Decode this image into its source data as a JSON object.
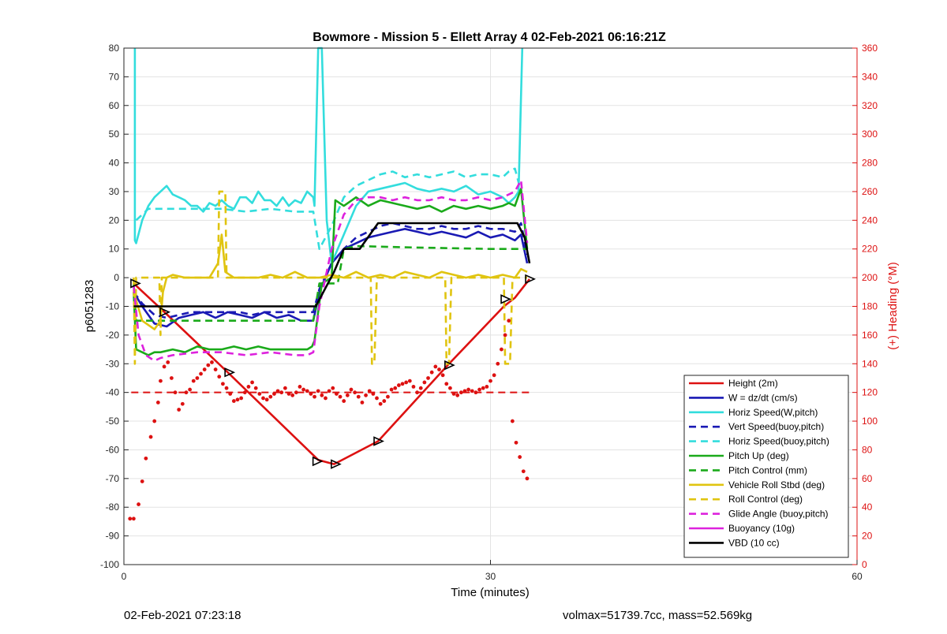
{
  "footer": {
    "timestamp": "02-Feb-2021 07:23:18",
    "stats": "volmax=51739.7cc, mass=52.569kg"
  },
  "chart_data": {
    "type": "line",
    "title": "Bowmore - Mission 5 - Ellett Array 4 02-Feb-2021 06:16:21Z",
    "xlabel": "Time (minutes)",
    "ylabel": "p6051283",
    "y2label": "(+) Heading (°M)",
    "xlim": [
      0,
      60
    ],
    "ylim": [
      -100,
      80
    ],
    "y2lim": [
      0,
      360
    ],
    "xticks": [
      0,
      30,
      60
    ],
    "yticks": [
      -100,
      -90,
      -80,
      -70,
      -60,
      -50,
      -40,
      -30,
      -20,
      -10,
      0,
      10,
      20,
      30,
      40,
      50,
      60,
      70,
      80
    ],
    "y2ticks": [
      0,
      20,
      40,
      60,
      80,
      100,
      120,
      140,
      160,
      180,
      200,
      220,
      240,
      260,
      280,
      300,
      320,
      340,
      360
    ],
    "grid": true,
    "legend_position": "bottom-right",
    "colors": {
      "red": "#dd1111",
      "blue": "#1a1ab4",
      "cyan": "#33dddd",
      "green": "#1aaa1a",
      "yellow": "#e0c410",
      "magenta": "#dd22dd",
      "black": "#000000",
      "right_axis": "#dd1111"
    },
    "series": [
      {
        "name": "Height (2m)",
        "color": "#dd1111",
        "dash": false,
        "x": [
          0.8,
          3.2,
          8.5,
          15.9,
          17.2,
          20.8,
          26.5,
          31.1,
          32.0,
          33.2
        ],
        "y": [
          -2,
          -11.5,
          -33,
          -63.5,
          -65,
          -57,
          -30.5,
          -10,
          -7,
          -0.5
        ]
      },
      {
        "name": "W = dz/dt (cm/s)",
        "color": "#1a1ab4",
        "dash": false,
        "x": [
          0.8,
          1.5,
          2.5,
          3.5,
          4.5,
          5.5,
          6.5,
          7.5,
          8.5,
          9.5,
          10.5,
          11.5,
          12.5,
          13.5,
          14.5,
          15.5,
          16.0,
          17.0,
          18.0,
          19.0,
          20.0,
          21.0,
          22.0,
          23.0,
          24.0,
          25.0,
          26.0,
          27.0,
          28.0,
          29.0,
          30.0,
          31.0,
          32.0,
          32.5,
          33.0
        ],
        "y": [
          -5,
          -10,
          -16,
          -17,
          -14,
          -13,
          -12,
          -14,
          -12,
          -13,
          -14,
          -12,
          -14,
          -13,
          -15,
          -15,
          -5,
          5,
          10,
          12,
          14,
          15,
          16,
          17,
          16,
          15,
          16,
          15,
          14,
          16,
          14,
          15,
          13,
          15,
          5
        ]
      },
      {
        "name": "Horiz Speed(W,pitch)",
        "color": "#33dddd",
        "dash": false,
        "x": [
          0.9,
          0.9,
          1.0,
          1.5,
          2.0,
          2.5,
          3.0,
          3.5,
          4.0,
          4.5,
          5.0,
          5.5,
          6.0,
          6.5,
          7.0,
          7.5,
          8.0,
          8.5,
          9.0,
          9.5,
          10.0,
          10.5,
          11.0,
          11.5,
          12.0,
          12.5,
          13.0,
          13.5,
          14.0,
          14.5,
          15.0,
          15.5,
          15.6,
          15.9,
          16.2,
          16.6,
          17.0,
          18.0,
          19.0,
          20.0,
          21.0,
          22.0,
          23.0,
          24.0,
          25.0,
          26.0,
          27.0,
          28.0,
          29.0,
          30.0,
          31.0,
          31.5,
          32.0,
          32.3,
          32.6
        ],
        "y": [
          80,
          13,
          12,
          20,
          25,
          28,
          30,
          32,
          29,
          28,
          27,
          25,
          25,
          23,
          26,
          25,
          27,
          25,
          24,
          28,
          28,
          26,
          30,
          27,
          27,
          25,
          28,
          25,
          27,
          26,
          30,
          28,
          25,
          80,
          80,
          20,
          5,
          15,
          25,
          30,
          31,
          32,
          33,
          31,
          30,
          31,
          30,
          32,
          29,
          30,
          28,
          26,
          28,
          30,
          80
        ]
      },
      {
        "name": "Vert Speed(buoy,pitch)",
        "color": "#1a1ab4",
        "dash": true,
        "x": [
          0.8,
          1.5,
          2.5,
          3.5,
          4.5,
          5.5,
          6.5,
          7.5,
          8.5,
          9.5,
          10.5,
          11.5,
          12.5,
          13.5,
          14.5,
          15.5,
          16.0,
          17.0,
          18.0,
          19.0,
          20.0,
          21.0,
          22.0,
          23.0,
          24.0,
          25.0,
          26.0,
          27.0,
          28.0,
          29.0,
          30.0,
          31.0,
          32.0,
          32.5,
          33.0
        ],
        "y": [
          -5,
          -9,
          -13,
          -14,
          -13,
          -12,
          -12,
          -12,
          -12,
          -12,
          -13,
          -12,
          -12,
          -12,
          -12,
          -12,
          -4,
          5,
          10,
          14,
          16,
          18,
          19,
          18,
          17,
          17,
          18,
          17,
          17,
          18,
          17,
          17,
          16,
          19,
          8
        ]
      },
      {
        "name": "Horiz Speed(buoy,pitch)",
        "color": "#33dddd",
        "dash": true,
        "x": [
          1.0,
          1.5,
          2.0,
          3.0,
          4.0,
          6.0,
          8.0,
          10.0,
          12.0,
          14.0,
          15.5,
          16.0,
          17.0,
          18.0,
          19.0,
          20.0,
          21.0,
          22.0,
          23.0,
          24.0,
          25.0,
          26.0,
          27.0,
          28.0,
          29.0,
          30.0,
          31.0,
          31.5,
          32.0,
          32.5
        ],
        "y": [
          20,
          22,
          24,
          24,
          24,
          24,
          24,
          23,
          24,
          23,
          23,
          10,
          18,
          28,
          32,
          34,
          36,
          37,
          35,
          36,
          35,
          36,
          37,
          35,
          36,
          36,
          35,
          37,
          38,
          30
        ]
      },
      {
        "name": "Pitch Up (deg)",
        "color": "#1aaa1a",
        "dash": false,
        "x": [
          0.8,
          1.0,
          1.5,
          2.0,
          2.5,
          3.0,
          4.0,
          5.0,
          6.0,
          7.0,
          8.0,
          9.0,
          10.0,
          11.0,
          12.0,
          13.0,
          14.0,
          15.0,
          15.4,
          15.6,
          16.2,
          17.0,
          17.3,
          18.0,
          19.0,
          20.0,
          21.0,
          22.0,
          23.0,
          24.0,
          25.0,
          26.0,
          27.0,
          28.0,
          29.0,
          30.0,
          31.0,
          31.5,
          32.0,
          32.5,
          33.0
        ],
        "y": [
          -5,
          -25,
          -26,
          -27,
          -26,
          -26,
          -25,
          -26,
          -24,
          -25,
          -25,
          -24,
          -25,
          -24,
          -25,
          -25,
          -25,
          -25,
          -24,
          -22,
          -2,
          0,
          27,
          25,
          28,
          25,
          27,
          26,
          25,
          24,
          25,
          23,
          25,
          24,
          25,
          24,
          25,
          26,
          25,
          31,
          10
        ]
      },
      {
        "name": "Pitch Control (mm)",
        "color": "#1aaa1a",
        "dash": true,
        "x": [
          0.8,
          1.0,
          15.5,
          16.0,
          17.5,
          18.0,
          19.0,
          24.0,
          30.0,
          33.0
        ],
        "y": [
          -2,
          -15,
          -15,
          -2,
          -2,
          10,
          11,
          10.5,
          10,
          10
        ]
      },
      {
        "name": "Vehicle Roll Stbd (deg)",
        "color": "#e0c410",
        "dash": false,
        "x": [
          0.8,
          1.5,
          2.5,
          3.0,
          3.2,
          3.5,
          4.0,
          5.0,
          6.0,
          7.0,
          7.7,
          8.0,
          8.3,
          9.0,
          10.0,
          11.0,
          12.0,
          13.0,
          14.0,
          15.0,
          16.0,
          17.0,
          18.0,
          19.0,
          20.0,
          21.0,
          22.0,
          23.0,
          24.0,
          25.0,
          26.0,
          27.0,
          28.0,
          29.0,
          30.0,
          31.0,
          32.0,
          32.5,
          33.0
        ],
        "y": [
          -5,
          -15,
          -18,
          -15,
          -5,
          0,
          1,
          0,
          0,
          0,
          5,
          15,
          2,
          0,
          0,
          0,
          1,
          0,
          2,
          0,
          0,
          1,
          0,
          2,
          0,
          1,
          0,
          2,
          1,
          0,
          2,
          1,
          0,
          1,
          0,
          1,
          0,
          3,
          2
        ]
      },
      {
        "name": "Roll Control (deg)",
        "color": "#e0c410",
        "dash": true,
        "x": [
          0.8,
          0.9,
          1.0,
          2.9,
          3.0,
          3.1,
          7.7,
          7.8,
          8.3,
          8.4,
          20.2,
          20.3,
          20.5,
          20.7,
          26.3,
          26.4,
          26.6,
          26.8,
          31.1,
          31.2,
          31.6,
          31.8,
          33.0
        ],
        "y": [
          0,
          -30,
          0,
          0,
          -20,
          0,
          0,
          30,
          30,
          0,
          0,
          -30,
          -30,
          0,
          0,
          -30,
          -30,
          0,
          0,
          -30,
          -30,
          0,
          0
        ]
      },
      {
        "name": "Glide Angle (buoy,pitch)",
        "color": "#dd22dd",
        "dash": true,
        "x": [
          0.8,
          1.2,
          1.8,
          2.5,
          3.0,
          4.0,
          6.0,
          8.0,
          10.0,
          12.0,
          14.0,
          15.0,
          15.5,
          16.0,
          17.0,
          18.0,
          19.0,
          20.0,
          21.0,
          22.0,
          23.0,
          24.0,
          25.0,
          26.0,
          27.0,
          28.0,
          29.0,
          30.0,
          31.0,
          32.0,
          32.5,
          33.0
        ],
        "y": [
          -3,
          -20,
          -27,
          -29,
          -28,
          -27,
          -26,
          -26,
          -27,
          -26,
          -27,
          -27,
          -26,
          -10,
          10,
          22,
          27,
          28,
          28,
          27,
          28,
          27,
          27,
          28,
          27,
          27,
          28,
          27,
          28,
          30,
          34,
          12
        ]
      },
      {
        "name": "Buoyancy (10g)",
        "color": "#dd22dd",
        "dash": false,
        "x": [],
        "y": []
      },
      {
        "name": "VBD (10 cc)",
        "color": "#000000",
        "dash": false,
        "x": [
          0.8,
          15.7,
          17.2,
          18.0,
          19.3,
          20.8,
          32.2,
          32.8,
          33.2
        ],
        "y": [
          -10,
          -10,
          2,
          10,
          10,
          19,
          19,
          14,
          5
        ]
      }
    ],
    "markers": {
      "shape": "triangle",
      "color": "#000000",
      "x": [
        0.9,
        3.3,
        8.6,
        15.8,
        17.3,
        20.8,
        26.6,
        31.2,
        33.2
      ],
      "y": [
        -2,
        -12,
        -33,
        -64,
        -65,
        -57,
        -30.5,
        -7.5,
        -0.5
      ]
    },
    "heading_points": {
      "axis": "right",
      "color": "#dd1111",
      "x": [
        0.5,
        0.8,
        1.2,
        1.5,
        1.8,
        2.2,
        2.5,
        2.8,
        3.0,
        3.3,
        3.6,
        3.9,
        4.2,
        4.5,
        4.8,
        5.1,
        5.4,
        5.7,
        6.0,
        6.3,
        6.6,
        6.9,
        7.2,
        7.5,
        7.8,
        8.1,
        8.4,
        8.7,
        9.0,
        9.3,
        9.6,
        9.9,
        10.2,
        10.5,
        10.8,
        11.1,
        11.4,
        11.7,
        12.0,
        12.3,
        12.6,
        12.9,
        13.2,
        13.5,
        13.8,
        14.1,
        14.4,
        14.7,
        15.0,
        15.3,
        15.6,
        15.9,
        16.2,
        16.5,
        16.8,
        17.1,
        17.4,
        17.7,
        18.0,
        18.3,
        18.6,
        18.9,
        19.2,
        19.5,
        19.8,
        20.1,
        20.4,
        20.7,
        21.0,
        21.3,
        21.6,
        21.9,
        22.2,
        22.5,
        22.8,
        23.1,
        23.4,
        23.7,
        24.0,
        24.3,
        24.6,
        24.9,
        25.2,
        25.5,
        25.8,
        26.1,
        26.4,
        26.7,
        27.0,
        27.3,
        27.6,
        27.9,
        28.2,
        28.5,
        28.8,
        29.1,
        29.4,
        29.7,
        30.0,
        30.3,
        30.6,
        30.9,
        31.2,
        31.5,
        31.8,
        32.1,
        32.4,
        32.7,
        33.0
      ],
      "y": [
        32,
        32,
        42,
        58,
        74,
        89,
        100,
        113,
        128,
        138,
        141,
        130,
        120,
        108,
        112,
        120,
        122,
        128,
        130,
        133,
        136,
        139,
        141,
        136,
        131,
        126,
        123,
        119,
        114,
        115,
        116,
        120,
        124,
        127,
        123,
        119,
        116,
        115,
        117,
        119,
        121,
        120,
        123,
        119,
        118,
        120,
        124,
        122,
        121,
        119,
        117,
        121,
        118,
        116,
        121,
        123,
        119,
        117,
        114,
        118,
        122,
        120,
        117,
        113,
        118,
        121,
        119,
        116,
        112,
        114,
        117,
        122,
        123,
        125,
        126,
        127,
        128,
        124,
        120,
        123,
        127,
        130,
        134,
        138,
        136,
        132,
        126,
        123,
        119,
        118,
        120,
        121,
        122,
        121,
        120,
        122,
        123,
        124,
        128,
        132,
        140,
        150,
        160,
        170,
        100,
        85,
        75,
        65,
        60
      ]
    }
  }
}
